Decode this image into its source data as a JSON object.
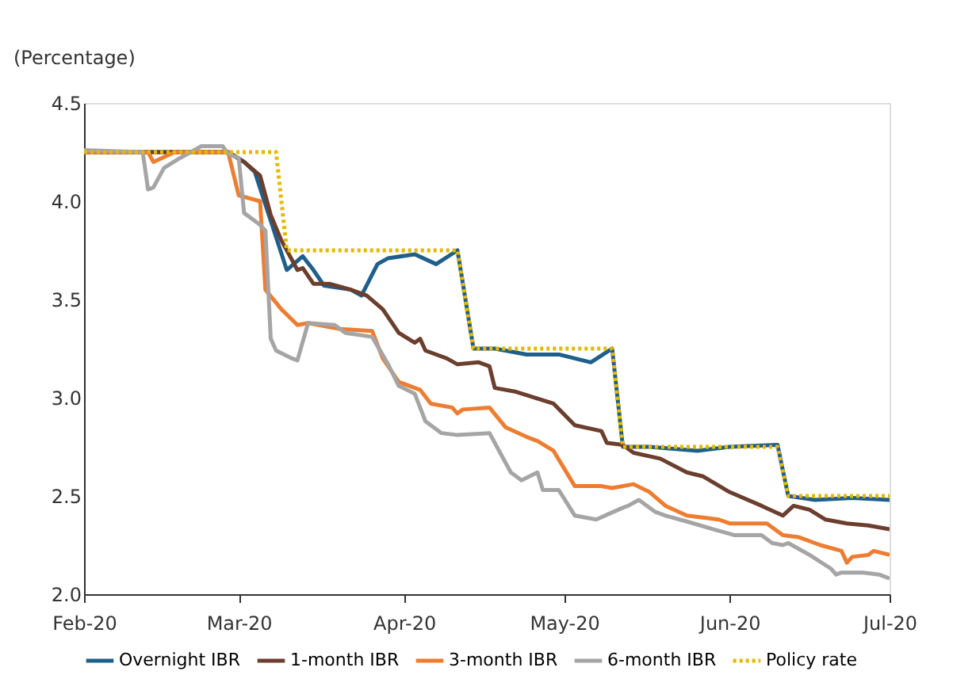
{
  "chart_data": {
    "type": "line",
    "ylabel": "(Percentage)",
    "xlim": [
      "2020-02-01",
      "2020-07-01"
    ],
    "xticks": [
      {
        "value": "2020-02-01",
        "label": "Feb-20"
      },
      {
        "value": "2020-03-01",
        "label": "Mar-20"
      },
      {
        "value": "2020-04-01",
        "label": "Apr-20"
      },
      {
        "value": "2020-05-01",
        "label": "May-20"
      },
      {
        "value": "2020-06-01",
        "label": "Jun-20"
      },
      {
        "value": "2020-07-01",
        "label": "Jul-20"
      }
    ],
    "ylim": [
      2.0,
      4.5
    ],
    "yticks": [
      {
        "value": 2,
        "label": "2.0"
      },
      2.5,
      {
        "value": 3,
        "label": "3.0"
      },
      3.5,
      {
        "value": 4,
        "label": "4.0"
      },
      4.5
    ],
    "grid": false,
    "legend": "bottom",
    "marker": "none",
    "series": [
      {
        "name": "Overnight IBR",
        "color": "#1f5f8b",
        "line_style": "solid",
        "x": [
          "2020-02-01",
          "2020-02-28",
          "2020-03-02",
          "2020-03-04",
          "2020-03-07",
          "2020-03-10",
          "2020-03-13",
          "2020-03-15",
          "2020-03-17",
          "2020-03-22",
          "2020-03-24",
          "2020-03-27",
          "2020-03-29",
          "2020-04-03",
          "2020-04-07",
          "2020-04-11",
          "2020-04-14",
          "2020-04-18",
          "2020-04-24",
          "2020-04-30",
          "2020-05-06",
          "2020-05-10",
          "2020-05-12",
          "2020-05-17",
          "2020-05-26",
          "2020-06-01",
          "2020-06-10",
          "2020-06-12",
          "2020-06-17",
          "2020-06-24",
          "2020-07-01"
        ],
        "values": [
          4.25,
          4.25,
          4.2,
          4.15,
          3.9,
          3.65,
          3.72,
          3.65,
          3.57,
          3.55,
          3.52,
          3.68,
          3.71,
          3.73,
          3.68,
          3.75,
          3.25,
          3.25,
          3.22,
          3.22,
          3.18,
          3.25,
          2.75,
          2.75,
          2.73,
          2.75,
          2.76,
          2.5,
          2.48,
          2.49,
          2.48
        ]
      },
      {
        "name": "1-month IBR",
        "color": "#6b3e2e",
        "line_style": "solid",
        "x": [
          "2020-02-01",
          "2020-02-28",
          "2020-03-02",
          "2020-03-05",
          "2020-03-07",
          "2020-03-09",
          "2020-03-12",
          "2020-03-13",
          "2020-03-15",
          "2020-03-18",
          "2020-03-22",
          "2020-03-25",
          "2020-03-28",
          "2020-03-31",
          "2020-04-03",
          "2020-04-04",
          "2020-04-05",
          "2020-04-09",
          "2020-04-11",
          "2020-04-15",
          "2020-04-17",
          "2020-04-18",
          "2020-04-22",
          "2020-04-29",
          "2020-05-03",
          "2020-05-08",
          "2020-05-09",
          "2020-05-12",
          "2020-05-14",
          "2020-05-19",
          "2020-05-24",
          "2020-05-27",
          "2020-06-01",
          "2020-06-07",
          "2020-06-11",
          "2020-06-13",
          "2020-06-16",
          "2020-06-19",
          "2020-06-23",
          "2020-06-27",
          "2020-07-01"
        ],
        "values": [
          4.25,
          4.25,
          4.2,
          4.13,
          3.93,
          3.8,
          3.65,
          3.66,
          3.58,
          3.58,
          3.55,
          3.52,
          3.45,
          3.33,
          3.28,
          3.3,
          3.24,
          3.2,
          3.17,
          3.18,
          3.16,
          3.05,
          3.03,
          2.97,
          2.86,
          2.83,
          2.77,
          2.76,
          2.72,
          2.69,
          2.62,
          2.6,
          2.52,
          2.45,
          2.4,
          2.45,
          2.43,
          2.38,
          2.36,
          2.35,
          2.33
        ]
      },
      {
        "name": "3-month IBR",
        "color": "#ed7d31",
        "line_style": "solid",
        "x": [
          "2020-02-01",
          "2020-02-13",
          "2020-02-14",
          "2020-02-18",
          "2020-02-28",
          "2020-03-01",
          "2020-03-05",
          "2020-03-06",
          "2020-03-09",
          "2020-03-12",
          "2020-03-14",
          "2020-03-20",
          "2020-03-26",
          "2020-03-28",
          "2020-03-31",
          "2020-04-04",
          "2020-04-06",
          "2020-04-10",
          "2020-04-11",
          "2020-04-12",
          "2020-04-17",
          "2020-04-20",
          "2020-04-24",
          "2020-04-26",
          "2020-04-29",
          "2020-05-03",
          "2020-05-08",
          "2020-05-10",
          "2020-05-14",
          "2020-05-17",
          "2020-05-20",
          "2020-05-24",
          "2020-05-30",
          "2020-06-01",
          "2020-06-08",
          "2020-06-11",
          "2020-06-14",
          "2020-06-18",
          "2020-06-22",
          "2020-06-23",
          "2020-06-24",
          "2020-06-27",
          "2020-06-28",
          "2020-07-01"
        ],
        "values": [
          4.25,
          4.25,
          4.2,
          4.25,
          4.25,
          4.03,
          4.0,
          3.55,
          3.45,
          3.37,
          3.38,
          3.35,
          3.34,
          3.2,
          3.08,
          3.04,
          2.97,
          2.95,
          2.92,
          2.94,
          2.95,
          2.85,
          2.8,
          2.78,
          2.73,
          2.55,
          2.55,
          2.54,
          2.56,
          2.52,
          2.45,
          2.4,
          2.38,
          2.36,
          2.36,
          2.3,
          2.29,
          2.25,
          2.22,
          2.16,
          2.19,
          2.2,
          2.22,
          2.2
        ]
      },
      {
        "name": "6-month IBR",
        "color": "#a5a5a5",
        "line_style": "solid",
        "x": [
          "2020-02-01",
          "2020-02-12",
          "2020-02-13",
          "2020-02-14",
          "2020-02-16",
          "2020-02-19",
          "2020-02-21",
          "2020-02-23",
          "2020-02-27",
          "2020-02-28",
          "2020-03-01",
          "2020-03-02",
          "2020-03-05",
          "2020-03-06",
          "2020-03-07",
          "2020-03-08",
          "2020-03-11",
          "2020-03-12",
          "2020-03-14",
          "2020-03-19",
          "2020-03-21",
          "2020-03-26",
          "2020-03-29",
          "2020-03-31",
          "2020-04-03",
          "2020-04-05",
          "2020-04-08",
          "2020-04-11",
          "2020-04-17",
          "2020-04-19",
          "2020-04-21",
          "2020-04-23",
          "2020-04-26",
          "2020-04-27",
          "2020-04-30",
          "2020-05-03",
          "2020-05-07",
          "2020-05-12",
          "2020-05-13",
          "2020-05-15",
          "2020-05-18",
          "2020-05-20",
          "2020-05-24",
          "2020-05-29",
          "2020-06-02",
          "2020-06-07",
          "2020-06-09",
          "2020-06-11",
          "2020-06-12",
          "2020-06-16",
          "2020-06-20",
          "2020-06-21",
          "2020-06-22",
          "2020-06-26",
          "2020-06-29",
          "2020-07-01"
        ],
        "values": [
          4.26,
          4.25,
          4.06,
          4.07,
          4.17,
          4.22,
          4.25,
          4.28,
          4.28,
          4.24,
          4.22,
          3.94,
          3.88,
          3.85,
          3.3,
          3.24,
          3.2,
          3.19,
          3.38,
          3.37,
          3.33,
          3.31,
          3.17,
          3.06,
          3.02,
          2.88,
          2.82,
          2.81,
          2.82,
          2.72,
          2.62,
          2.58,
          2.62,
          2.53,
          2.53,
          2.4,
          2.38,
          2.44,
          2.45,
          2.48,
          2.42,
          2.4,
          2.37,
          2.33,
          2.3,
          2.3,
          2.26,
          2.25,
          2.26,
          2.2,
          2.13,
          2.1,
          2.11,
          2.11,
          2.1,
          2.08
        ]
      },
      {
        "name": "Policy rate",
        "color": "#e6b800",
        "line_style": "dotted",
        "x": [
          "2020-02-01",
          "2020-03-08",
          "2020-03-10",
          "2020-04-11",
          "2020-04-14",
          "2020-05-10",
          "2020-05-12",
          "2020-06-10",
          "2020-06-12",
          "2020-07-01"
        ],
        "values": [
          4.25,
          4.25,
          3.75,
          3.75,
          3.25,
          3.25,
          2.75,
          2.75,
          2.5,
          2.5
        ]
      }
    ]
  }
}
